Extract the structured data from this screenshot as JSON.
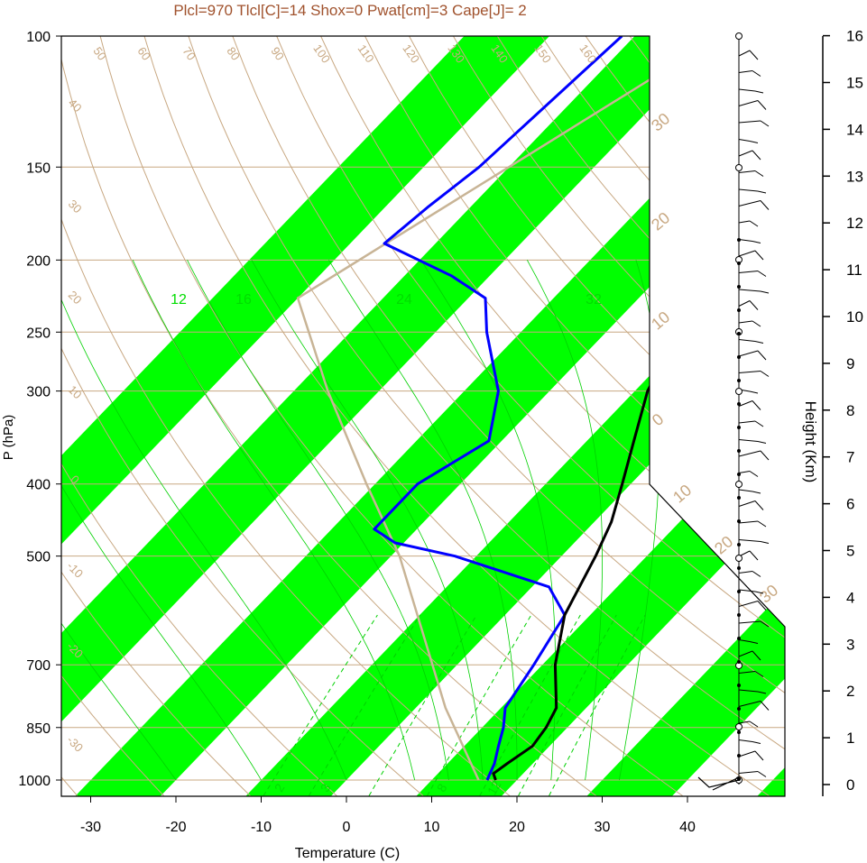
{
  "chart_data": {
    "type": "line",
    "subtype": "skew-t-log-p",
    "title": "Plcl=970 Tlcl[C]=14 Shox=0 Pwat[cm]=3 Cape[J]= 2",
    "xlabel": "Temperature (C)",
    "ylabel": "P (hPa)",
    "y2label": "Height (Km)",
    "x_ticks": [
      "-30",
      "-20",
      "-10",
      "0",
      "10",
      "20",
      "30",
      "40"
    ],
    "y_ticks": [
      "100",
      "150",
      "200",
      "250",
      "300",
      "400",
      "500",
      "700",
      "850",
      "1000"
    ],
    "height_ticks": [
      "0",
      "1",
      "2",
      "3",
      "4",
      "5",
      "6",
      "7",
      "8",
      "9",
      "10",
      "11",
      "12",
      "13",
      "14",
      "15",
      "16"
    ],
    "scale": "log-pressure",
    "colors": {
      "temperature": "#000000",
      "dewpoint": "#0000ff",
      "parcel": "#c8b496",
      "bands": "#00ff00",
      "isobars": "#c8a882",
      "adiabats": "#c8a882",
      "moist_adiabats": "#00d000",
      "mixing_ratio": "#00d000",
      "title": "#a0522d"
    },
    "series": [
      {
        "name": "temperature",
        "points": [
          [
            1000,
            17.5
          ],
          [
            980,
            16.5
          ],
          [
            950,
            17.0
          ],
          [
            900,
            18.0
          ],
          [
            850,
            17.5
          ],
          [
            800,
            16.5
          ],
          [
            700,
            11.5
          ],
          [
            600,
            7.0
          ],
          [
            500,
            4.0
          ],
          [
            450,
            2.0
          ],
          [
            400,
            -1.0
          ],
          [
            350,
            -4.5
          ],
          [
            300,
            -8.5
          ],
          [
            250,
            -11.5
          ],
          [
            230,
            -11.0
          ],
          [
            210,
            -9.0
          ],
          [
            195,
            -5.0
          ],
          [
            180,
            -3.5
          ],
          [
            150,
            0.0
          ],
          [
            120,
            5.5
          ],
          [
            100,
            10.0
          ]
        ]
      },
      {
        "name": "dewpoint",
        "points": [
          [
            1000,
            16.5
          ],
          [
            950,
            15.5
          ],
          [
            900,
            14.0
          ],
          [
            850,
            12.5
          ],
          [
            800,
            10.5
          ],
          [
            700,
            9.0
          ],
          [
            600,
            7.0
          ],
          [
            550,
            2.0
          ],
          [
            500,
            -12.5
          ],
          [
            480,
            -21.0
          ],
          [
            460,
            -25.0
          ],
          [
            400,
            -25.0
          ],
          [
            350,
            -21.5
          ],
          [
            300,
            -26.0
          ],
          [
            250,
            -34.0
          ],
          [
            225,
            -38.0
          ],
          [
            210,
            -44.5
          ],
          [
            190,
            -56.0
          ],
          [
            170,
            -55.0
          ],
          [
            150,
            -53.5
          ],
          [
            100,
            -51.5
          ]
        ]
      },
      {
        "name": "parcel",
        "points": [
          [
            1000,
            15.5
          ],
          [
            800,
            3.5
          ],
          [
            500,
            -19.0
          ],
          [
            400,
            -31.0
          ],
          [
            300,
            -46.0
          ],
          [
            225,
            -60.0
          ],
          [
            150,
            -50.0
          ],
          [
            100,
            -40.0
          ]
        ]
      }
    ],
    "adiabat_labels": [
      "50",
      "60",
      "70",
      "80",
      "90",
      "100",
      "110",
      "120",
      "130",
      "140",
      "150",
      "160"
    ],
    "isotherm_labels": [
      "40",
      "30",
      "20",
      "10",
      "0",
      "-10",
      "-20",
      "-30"
    ],
    "moist_labels": [
      "30",
      "20",
      "10",
      "0",
      "10",
      "20",
      "30"
    ],
    "mixing_labels_top": [
      "12",
      "16",
      "24",
      "32"
    ],
    "mixing_labels_bottom": [
      "2",
      "3",
      "8",
      "12"
    ],
    "wind_profile": "barbs along height axis",
    "grid": true
  }
}
